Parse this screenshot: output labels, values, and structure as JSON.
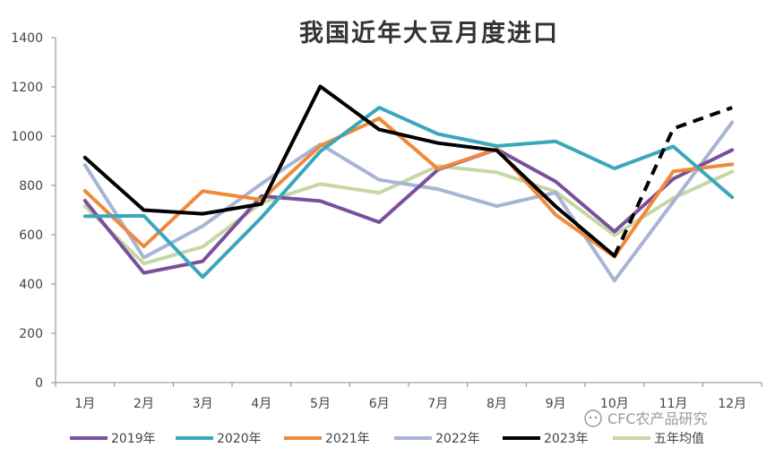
{
  "chart_data": {
    "type": "line",
    "title": "我国近年大豆月度进口",
    "categories": [
      "1月",
      "2月",
      "3月",
      "4月",
      "5月",
      "6月",
      "7月",
      "8月",
      "9月",
      "10月",
      "11月",
      "12月"
    ],
    "yticks": [
      0,
      200,
      400,
      600,
      800,
      1000,
      1200,
      1400
    ],
    "ylim": [
      0,
      1400
    ],
    "grid": false,
    "legend_position": "bottom",
    "series": [
      {
        "name": "2019年",
        "color": "#7a4f9e",
        "values": [
          738,
          445,
          492,
          757,
          737,
          651,
          864,
          947,
          816,
          613,
          827,
          944
        ]
      },
      {
        "name": "2020年",
        "color": "#3ba7bc",
        "values": [
          675,
          677,
          428,
          670,
          938,
          1116,
          1009,
          960,
          979,
          869,
          958,
          752
        ]
      },
      {
        "name": "2021年",
        "color": "#f08a3b",
        "values": [
          778,
          552,
          777,
          742,
          961,
          1072,
          867,
          948,
          681,
          511,
          857,
          886
        ]
      },
      {
        "name": "2022年",
        "color": "#a8b4d4",
        "values": [
          883,
          507,
          635,
          807,
          967,
          823,
          785,
          716,
          771,
          414,
          734,
          1056
        ]
      },
      {
        "name": "2023年",
        "color": "#000000",
        "values": [
          913,
          700,
          685,
          725,
          1202,
          1027,
          972,
          942,
          715,
          514,
          1031,
          1116
        ],
        "dashed_from_index": 9
      },
      {
        "name": "五年均值",
        "color": "#c5d8a4",
        "values": [
          716,
          483,
          551,
          729,
          806,
          770,
          879,
          853,
          775,
          598,
          749,
          856
        ]
      }
    ]
  },
  "watermark": {
    "text": "CFC农产品研究",
    "icon": "wechat-icon"
  }
}
